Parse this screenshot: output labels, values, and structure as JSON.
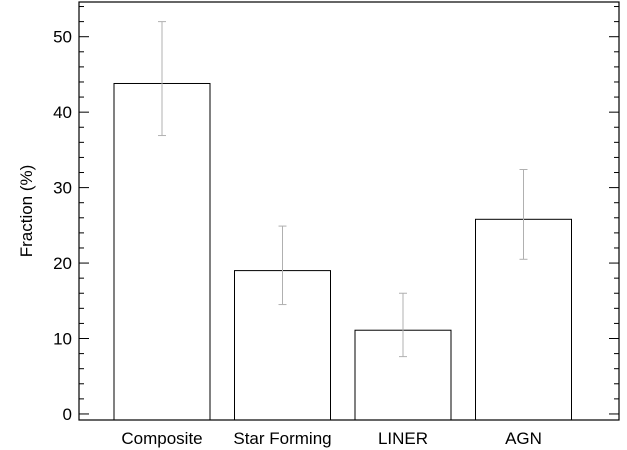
{
  "chart_data": {
    "type": "bar",
    "categories": [
      "Composite",
      "Star Forming",
      "LINER",
      "AGN"
    ],
    "values": [
      43.8,
      19.0,
      11.1,
      25.8
    ],
    "error_low": [
      36.9,
      14.5,
      7.6,
      20.5
    ],
    "error_high": [
      52.0,
      24.9,
      16.0,
      32.4
    ],
    "ylabel": "Fraction (%)",
    "xlabel": "",
    "ylim": [
      -0.8,
      54.6
    ],
    "yticks": [
      0,
      10,
      20,
      30,
      40,
      50
    ],
    "ytick_labels": [
      "0",
      "10",
      "20",
      "30",
      "40",
      "50"
    ],
    "minor_step": 2,
    "grid": false,
    "colors": {
      "bar_fill": "#ffffff",
      "bar_edge": "#000000",
      "error_bar": "#b0b0b0"
    }
  }
}
